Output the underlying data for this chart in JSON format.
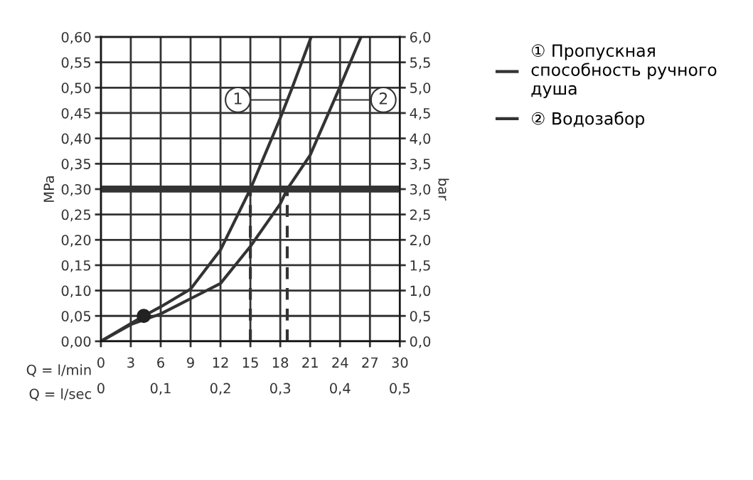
{
  "chart_data": {
    "type": "line",
    "xlabel": "Q = l/min",
    "ylabel": "MPa",
    "y2label": "bar",
    "x2label": "Q = l/sec",
    "series": [
      {
        "name": "① Пропускная\nспособность ручного\nдуша",
        "color": "#333333",
        "x": [
          0,
          3,
          4.3,
          6,
          9,
          12,
          15,
          18,
          19.2,
          21.1
        ],
        "values": [
          0,
          0.035,
          0.05,
          0.068,
          0.103,
          0.18,
          0.3,
          0.44,
          0.5,
          0.6
        ]
      },
      {
        "name": "② Водозабор",
        "color": "#333333",
        "x": [
          0,
          3,
          6,
          9,
          12,
          15,
          18,
          18.7,
          21,
          24,
          26.1
        ],
        "values": [
          0,
          0.033,
          0.054,
          0.084,
          0.114,
          0.187,
          0.271,
          0.3,
          0.367,
          0.502,
          0.6
        ]
      },
      {
        "type": "scatter",
        "color": "#222222",
        "marker": "circle",
        "x": [
          4.3
        ],
        "values": [
          0.05
        ]
      },
      {
        "color": "#333333",
        "line_style": "dashed",
        "x": [
          15,
          15
        ],
        "values": [
          0,
          0.3
        ]
      },
      {
        "color": "#333333",
        "line_style": "dashed",
        "x": [
          18.7,
          18.7
        ],
        "values": [
          0,
          0.3
        ]
      }
    ],
    "ref_lines": [
      {
        "axis": "y",
        "value": 0.3,
        "color": "#333333"
      }
    ],
    "annotations": [
      {
        "text": "1",
        "x": 18.7,
        "y": 0.476
      },
      {
        "text": "2",
        "x": 23.4,
        "y": 0.476
      }
    ],
    "xlim": [
      0,
      30
    ],
    "xticks": [
      0,
      3,
      6,
      9,
      12,
      15,
      18,
      21,
      24,
      27,
      30
    ],
    "x2lim": [
      0,
      0.5
    ],
    "x2ticks": [
      {
        "value": 0,
        "label": "0"
      },
      {
        "value": 0.1,
        "label": "0,1"
      },
      {
        "value": 0.2,
        "label": "0,2"
      },
      {
        "value": 0.3,
        "label": "0,3"
      },
      {
        "value": 0.4,
        "label": "0,4"
      },
      {
        "value": 0.5,
        "label": "0,5"
      }
    ],
    "ylim": [
      0,
      0.6
    ],
    "yticks": [
      {
        "value": 0,
        "label": "0,00"
      },
      {
        "value": 0.05,
        "label": "0,05"
      },
      {
        "value": 0.1,
        "label": "0,10"
      },
      {
        "value": 0.15,
        "label": "0,15"
      },
      {
        "value": 0.2,
        "label": "0,20"
      },
      {
        "value": 0.25,
        "label": "0,25"
      },
      {
        "value": 0.3,
        "label": "0,30"
      },
      {
        "value": 0.35,
        "label": "0,35"
      },
      {
        "value": 0.4,
        "label": "0,40"
      },
      {
        "value": 0.45,
        "label": "0,45"
      },
      {
        "value": 0.5,
        "label": "0,50"
      },
      {
        "value": 0.55,
        "label": "0,55"
      },
      {
        "value": 0.6,
        "label": "0,60"
      }
    ],
    "y2lim": [
      0,
      6
    ],
    "y2ticks": [
      {
        "value": 0,
        "label": "0,0"
      },
      {
        "value": 0.5,
        "label": "0,5"
      },
      {
        "value": 1,
        "label": "1,0"
      },
      {
        "value": 1.5,
        "label": "1,5"
      },
      {
        "value": 2,
        "label": "2,0"
      },
      {
        "value": 2.5,
        "label": "2,5"
      },
      {
        "value": 3,
        "label": "3,0"
      },
      {
        "value": 3.5,
        "label": "3,5"
      },
      {
        "value": 4,
        "label": "4,0"
      },
      {
        "value": 4.5,
        "label": "4,5"
      },
      {
        "value": 5,
        "label": "5,0"
      },
      {
        "value": 5.5,
        "label": "5,5"
      },
      {
        "value": 6,
        "label": "6,0"
      }
    ],
    "grid": true,
    "legend": "right",
    "line_style": "solid",
    "marker": "none"
  }
}
